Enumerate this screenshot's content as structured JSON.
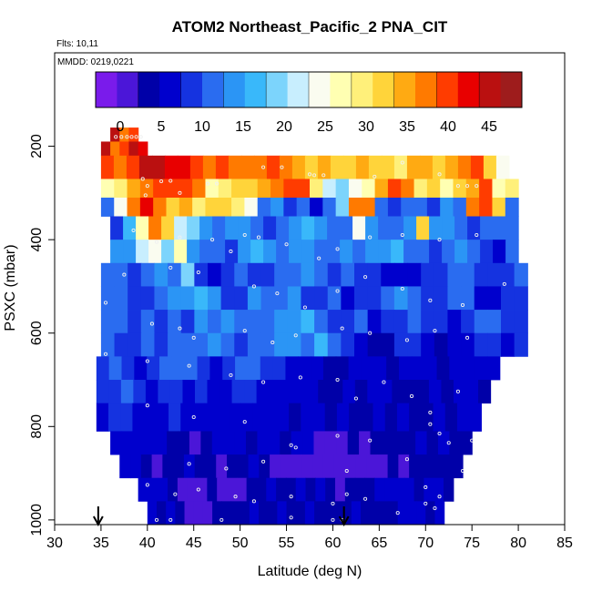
{
  "chart_data": {
    "type": "heatmap",
    "title": "ATOM2 Northeast_Pacific_2 PNA_CIT",
    "annotations": [
      "Flts: 10,11",
      "MMDD: 0219,0221"
    ],
    "xlabel": "Latitude (deg N)",
    "ylabel": "PSXC (mbar)",
    "xlim": [
      30,
      85
    ],
    "ylim": [
      1010,
      0
    ],
    "xticks": [
      "30",
      "35",
      "40",
      "45",
      "50",
      "55",
      "60",
      "65",
      "70",
      "75",
      "80",
      "85"
    ],
    "yticks": [
      "200",
      "400",
      "600",
      "800",
      "1000"
    ],
    "colorbar": {
      "range": [
        -3,
        49
      ],
      "tick_labels": [
        "0",
        "5",
        "10",
        "15",
        "20",
        "25",
        "30",
        "35",
        "40",
        "45"
      ],
      "colors": [
        "#7A1BEB",
        "#4B16D8",
        "#0000A8",
        "#0000CD",
        "#1533E0",
        "#2A6CF0",
        "#2B95F5",
        "#39B8FA",
        "#7CD4FC",
        "#C8EEFE",
        "#FAFCF0",
        "#FFFFB2",
        "#FFF07A",
        "#FFD43A",
        "#FFAA12",
        "#FF7A00",
        "#FF3C00",
        "#E80000",
        "#BA1010",
        "#9E1C1C"
      ]
    },
    "arrows": [
      {
        "x": 34.7,
        "label": ""
      },
      {
        "x": 61.2,
        "label": ""
      }
    ],
    "layers": [
      {
        "p": [
          160,
          190
        ],
        "xmin": 36.0,
        "xmax": 39.0,
        "values": [
          44,
          37,
          41
        ]
      },
      {
        "p": [
          190,
          220
        ],
        "xmin": 35.0,
        "xmax": 40.0,
        "values": [
          44,
          38,
          40,
          45,
          42
        ]
      },
      {
        "p": [
          220,
          270
        ],
        "xmin": 35.0,
        "xmax": 79.0,
        "values": [
          40,
          37,
          39,
          45,
          45,
          43,
          42,
          40,
          38,
          39,
          38,
          36,
          38,
          40,
          36,
          34,
          33,
          34,
          33,
          33,
          34,
          33,
          31,
          30,
          34,
          34,
          33,
          35,
          38,
          41,
          31,
          24
        ]
      },
      {
        "p": [
          270,
          310
        ],
        "xmin": 35.0,
        "xmax": 80.0,
        "values": [
          27,
          29,
          35,
          38,
          41,
          39,
          41,
          36,
          27,
          30,
          31,
          33,
          35,
          38,
          41,
          39,
          30,
          21,
          19,
          24,
          28,
          35,
          39,
          37,
          30,
          31,
          27,
          33,
          35,
          39,
          28,
          30
        ]
      },
      {
        "p": [
          310,
          350
        ],
        "xmin": 35.0,
        "xmax": 80.0,
        "values": [
          10,
          25,
          38,
          42,
          36,
          31,
          34,
          30,
          33,
          32,
          30,
          25,
          11,
          14,
          9,
          10,
          7,
          12,
          19,
          36,
          38,
          11,
          8,
          12,
          10,
          9,
          15,
          10,
          38,
          39,
          31,
          12
        ]
      },
      {
        "p": [
          350,
          400
        ],
        "xmin": 36.0,
        "xmax": 80.0,
        "values": [
          9,
          17,
          27,
          38,
          31,
          21,
          18,
          14,
          12,
          13,
          14,
          10,
          9,
          12,
          13,
          16,
          14,
          12,
          11,
          24,
          13,
          11,
          12,
          15,
          31,
          14,
          13,
          10,
          9,
          12,
          11,
          10
        ]
      },
      {
        "p": [
          400,
          450
        ],
        "xmin": 36.0,
        "xmax": 80.0,
        "values": [
          13,
          14,
          22,
          25,
          18,
          27,
          15,
          12,
          11,
          9,
          14,
          16,
          15,
          10,
          13,
          15,
          12,
          11,
          13,
          11,
          13,
          15,
          16,
          12,
          10,
          8,
          12,
          13,
          11,
          9,
          7,
          12
        ]
      },
      {
        "p": [
          450,
          500
        ],
        "xmin": 35.0,
        "xmax": 81.0,
        "values": [
          12,
          10,
          9,
          11,
          14,
          12,
          18,
          9,
          7,
          8,
          10,
          9,
          8,
          10,
          12,
          14,
          12,
          9,
          10,
          9,
          8,
          7,
          6,
          7,
          8,
          9,
          11,
          10,
          9,
          8,
          9,
          10
        ]
      },
      {
        "p": [
          500,
          550
        ],
        "xmin": 35.0,
        "xmax": 81.0,
        "values": [
          11,
          10,
          8,
          9,
          11,
          13,
          14,
          16,
          13,
          9,
          8,
          15,
          11,
          10,
          14,
          9,
          8,
          10,
          7,
          8,
          9,
          12,
          13,
          11,
          9,
          8,
          10,
          12,
          7,
          6,
          8,
          9
        ]
      },
      {
        "p": [
          550,
          600
        ],
        "xmin": 35.0,
        "xmax": 81.0,
        "values": [
          12,
          11,
          9,
          10,
          8,
          11,
          9,
          13,
          12,
          15,
          11,
          10,
          12,
          14,
          13,
          16,
          11,
          9,
          8,
          10,
          7,
          8,
          9,
          10,
          9,
          8,
          7,
          9,
          10,
          11,
          8,
          9
        ]
      },
      {
        "p": [
          600,
          650
        ],
        "xmin": 35.0,
        "xmax": 81.0,
        "values": [
          10,
          9,
          8,
          10,
          9,
          12,
          11,
          10,
          13,
          12,
          9,
          10,
          11,
          13,
          14,
          12,
          16,
          11,
          9,
          5,
          3,
          4,
          8,
          9,
          7,
          4,
          5,
          7,
          8,
          9,
          7,
          8
        ]
      },
      {
        "p": [
          650,
          700
        ],
        "xmin": 34.5,
        "xmax": 78.0,
        "values": [
          9,
          10,
          8,
          7,
          9,
          10,
          11,
          10,
          8,
          7,
          9,
          12,
          10,
          9,
          8,
          7,
          6,
          5,
          3,
          4,
          6,
          7,
          5,
          4,
          5,
          6,
          5,
          4,
          6,
          5,
          7,
          6
        ]
      },
      {
        "p": [
          700,
          750
        ],
        "xmin": 34.5,
        "xmax": 77.0,
        "values": [
          8,
          9,
          10,
          8,
          7,
          9,
          8,
          7,
          8,
          6,
          7,
          9,
          8,
          7,
          6,
          5,
          6,
          5,
          4,
          3,
          5,
          4,
          6,
          5,
          4,
          3,
          4,
          5,
          4,
          6,
          5,
          4
        ]
      },
      {
        "p": [
          750,
          810
        ],
        "xmin": 34.5,
        "xmax": 76.0,
        "values": [
          7,
          8,
          9,
          7,
          6,
          7,
          8,
          6,
          5,
          6,
          7,
          6,
          5,
          6,
          7,
          5,
          4,
          5,
          6,
          4,
          5,
          3,
          4,
          5,
          4,
          5,
          3,
          4,
          5,
          4,
          5,
          6
        ]
      },
      {
        "p": [
          810,
          860
        ],
        "xmin": 36.0,
        "xmax": 75.0,
        "values": [
          6,
          7,
          5,
          6,
          5,
          4,
          3,
          2,
          3,
          5,
          6,
          5,
          4,
          6,
          5,
          4,
          6,
          5,
          2,
          1,
          2,
          3,
          2,
          3,
          4,
          3,
          4,
          5,
          4,
          5,
          4,
          3
        ]
      },
      {
        "p": [
          860,
          910
        ],
        "xmin": 37.0,
        "xmax": 74.0,
        "values": [
          6,
          5,
          3,
          2,
          3,
          4,
          5,
          4,
          3,
          2,
          3,
          4,
          5,
          3,
          2,
          1,
          2,
          1,
          0,
          1,
          1,
          2,
          1,
          2,
          2,
          3,
          2,
          3,
          4,
          3,
          4,
          3
        ]
      },
      {
        "p": [
          910,
          960
        ],
        "xmin": 39.0,
        "xmax": 73.0,
        "values": [
          7,
          6,
          5,
          3,
          2,
          1,
          2,
          3,
          2,
          1,
          2,
          3,
          4,
          5,
          4,
          3,
          5,
          4,
          5,
          3,
          2,
          3,
          4,
          4,
          5,
          6,
          5,
          5,
          4,
          5,
          6,
          4
        ]
      },
      {
        "p": [
          960,
          1010
        ],
        "xmin": 40.0,
        "xmax": 72.0,
        "values": [
          5,
          4,
          5,
          3,
          2,
          1,
          2,
          3,
          4,
          3,
          4,
          5,
          3,
          4,
          5,
          4,
          3,
          5,
          4,
          4,
          3,
          4,
          5,
          3,
          4,
          3,
          4,
          5,
          6,
          5,
          4,
          5
        ]
      }
    ],
    "markers": [
      [
        36.6,
        180
      ],
      [
        37.2,
        180
      ],
      [
        37.8,
        180
      ],
      [
        38.3,
        180
      ],
      [
        38.8,
        180
      ],
      [
        39.3,
        180
      ],
      [
        39.5,
        270
      ],
      [
        41.5,
        275
      ],
      [
        42.5,
        274
      ],
      [
        40.0,
        285
      ],
      [
        39.8,
        305
      ],
      [
        43.5,
        300
      ],
      [
        46.5,
        280
      ],
      [
        47.5,
        280
      ],
      [
        52.5,
        245
      ],
      [
        54.5,
        245
      ],
      [
        57.5,
        260
      ],
      [
        58.0,
        262
      ],
      [
        59.0,
        262
      ],
      [
        64.5,
        265
      ],
      [
        67.5,
        235
      ],
      [
        71.5,
        260
      ],
      [
        73.5,
        285
      ],
      [
        74.5,
        285
      ],
      [
        75.5,
        285
      ],
      [
        38.5,
        380
      ],
      [
        41.0,
        405
      ],
      [
        43.5,
        395
      ],
      [
        47.0,
        400
      ],
      [
        49.0,
        425
      ],
      [
        50.5,
        390
      ],
      [
        52.0,
        395
      ],
      [
        55.0,
        410
      ],
      [
        58.5,
        440
      ],
      [
        60.5,
        420
      ],
      [
        64.0,
        395
      ],
      [
        67.5,
        390
      ],
      [
        71.5,
        400
      ],
      [
        75.5,
        390
      ],
      [
        37.5,
        475
      ],
      [
        42.5,
        460
      ],
      [
        45.5,
        470
      ],
      [
        51.5,
        500
      ],
      [
        54.0,
        515
      ],
      [
        57.0,
        545
      ],
      [
        60.5,
        510
      ],
      [
        63.5,
        480
      ],
      [
        67.5,
        505
      ],
      [
        70.5,
        530
      ],
      [
        74.0,
        540
      ],
      [
        78.5,
        495
      ],
      [
        35.5,
        535
      ],
      [
        40.5,
        580
      ],
      [
        43.5,
        590
      ],
      [
        45.0,
        610
      ],
      [
        50.5,
        595
      ],
      [
        53.5,
        620
      ],
      [
        56.0,
        605
      ],
      [
        61.0,
        590
      ],
      [
        64.0,
        600
      ],
      [
        68.0,
        615
      ],
      [
        71.0,
        595
      ],
      [
        74.5,
        610
      ],
      [
        35.5,
        645
      ],
      [
        40.0,
        660
      ],
      [
        44.5,
        670
      ],
      [
        49.0,
        690
      ],
      [
        52.5,
        705
      ],
      [
        56.5,
        695
      ],
      [
        60.5,
        700
      ],
      [
        62.5,
        740
      ],
      [
        65.5,
        705
      ],
      [
        68.5,
        735
      ],
      [
        70.5,
        770
      ],
      [
        73.5,
        725
      ],
      [
        40.0,
        755
      ],
      [
        45.0,
        780
      ],
      [
        50.5,
        790
      ],
      [
        55.5,
        840
      ],
      [
        56.0,
        845
      ],
      [
        60.5,
        820
      ],
      [
        64.0,
        830
      ],
      [
        70.5,
        795
      ],
      [
        71.5,
        815
      ],
      [
        72.5,
        835
      ],
      [
        75.0,
        830
      ],
      [
        44.5,
        880
      ],
      [
        48.5,
        890
      ],
      [
        52.5,
        875
      ],
      [
        61.5,
        895
      ],
      [
        68.0,
        870
      ],
      [
        70.0,
        930
      ],
      [
        74.0,
        895
      ],
      [
        40.0,
        925
      ],
      [
        43.0,
        945
      ],
      [
        45.5,
        935
      ],
      [
        49.5,
        950
      ],
      [
        51.5,
        960
      ],
      [
        55.5,
        950
      ],
      [
        60.0,
        965
      ],
      [
        61.5,
        945
      ],
      [
        63.5,
        955
      ],
      [
        67.0,
        985
      ],
      [
        71.0,
        975
      ],
      [
        71.5,
        950
      ],
      [
        41.0,
        1000
      ],
      [
        42.5,
        1000
      ],
      [
        48.0,
        1000
      ],
      [
        55.5,
        995
      ],
      [
        60.0,
        1000
      ],
      [
        61.0,
        1000
      ],
      [
        70.0,
        965
      ]
    ]
  }
}
